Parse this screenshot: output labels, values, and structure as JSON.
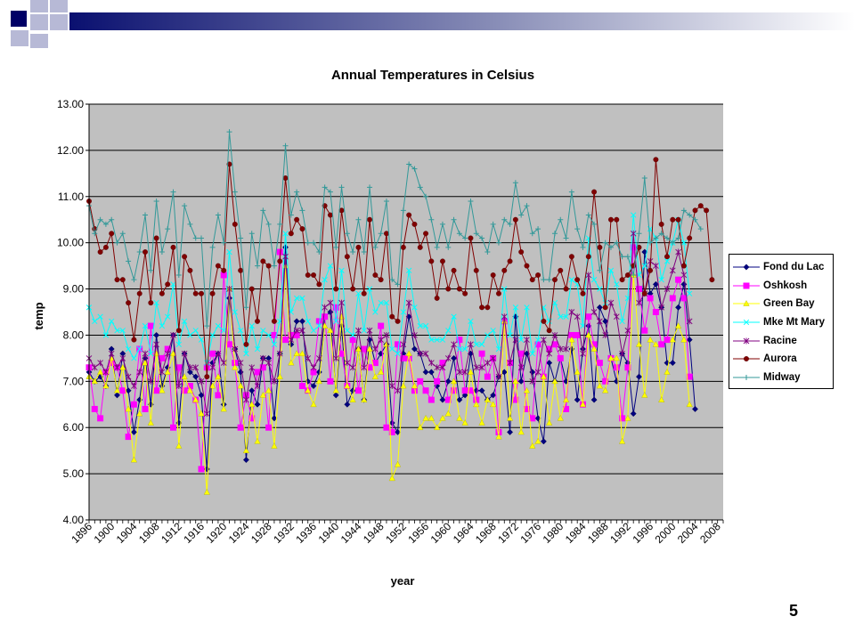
{
  "slide": {
    "number": "5"
  },
  "chart_data": {
    "type": "line",
    "title": "Annual Temperatures in Celsius",
    "xlabel": "year",
    "ylabel": "temp",
    "ylim": [
      4.0,
      13.0
    ],
    "yticks": [
      "4.00",
      "5.00",
      "6.00",
      "7.00",
      "8.00",
      "9.00",
      "10.00",
      "11.00",
      "12.00",
      "13.00"
    ],
    "xlim": [
      1896,
      2009
    ],
    "xticks": [
      "1896",
      "1900",
      "1904",
      "1908",
      "1912",
      "1916",
      "1920",
      "1924",
      "1928",
      "1932",
      "1936",
      "1940",
      "1944",
      "1948",
      "1952",
      "1956",
      "1960",
      "1964",
      "1968",
      "1972",
      "1976",
      "1980",
      "1984",
      "1988",
      "1992",
      "1996",
      "2000",
      "2004",
      "2008"
    ],
    "grid": "horizontal",
    "legend_position": "right",
    "x_start": 1896,
    "series": [
      {
        "name": "Fond du Lac",
        "color": "#000080",
        "marker": "diamond",
        "start": 1896,
        "values": [
          7.2,
          7.0,
          7.1,
          6.9,
          7.7,
          6.7,
          7.6,
          6.8,
          5.9,
          6.6,
          7.5,
          6.5,
          8.0,
          6.9,
          7.3,
          8.0,
          6.1,
          7.6,
          7.2,
          7.1,
          6.7,
          5.1,
          7.4,
          7.6,
          6.5,
          8.8,
          7.7,
          7.2,
          5.3,
          6.8,
          6.5,
          7.5,
          7.5,
          6.2,
          7.6,
          9.9,
          7.8,
          8.3,
          8.3,
          7.0,
          6.9,
          7.2,
          8.4,
          8.5,
          6.7,
          8.2,
          6.5,
          6.8,
          7.7,
          6.6,
          7.9,
          7.4,
          7.6,
          7.8,
          6.1,
          5.9,
          7.6,
          8.4,
          7.7,
          7.6,
          7.2,
          7.2,
          6.9,
          6.6,
          7.0,
          7.5,
          6.6,
          6.7,
          7.6,
          6.8,
          6.8,
          6.6,
          6.7,
          7.1,
          7.2,
          5.9,
          8.4,
          7.0,
          7.6,
          7.2,
          6.2,
          5.7,
          7.4,
          7.0,
          7.5,
          7.0,
          7.7,
          6.6,
          7.7,
          8.2,
          6.6,
          8.6,
          8.3,
          7.5,
          7.0,
          7.6,
          7.4,
          6.3,
          7.1,
          9.8,
          8.9,
          9.1,
          8.6,
          7.4,
          7.4,
          8.6,
          9.1,
          7.9,
          6.4
        ]
      },
      {
        "name": "Oshkosh",
        "color": "#ff00ff",
        "marker": "square",
        "start": 1896,
        "values": [
          7.3,
          6.4,
          6.2,
          7.2,
          7.4,
          7.3,
          6.8,
          5.8,
          6.5,
          7.7,
          6.4,
          8.2,
          6.8,
          7.5,
          7.7,
          6.0,
          7.3,
          6.8,
          6.9,
          6.6,
          5.1,
          7.3,
          7.6,
          6.7,
          9.3,
          7.8,
          7.4,
          6.0,
          6.7,
          6.2,
          7.2,
          7.3,
          6.0,
          8.0,
          9.8,
          7.9,
          8.0,
          8.0,
          6.9,
          6.8,
          7.2,
          8.3,
          8.4,
          7.0,
          8.6,
          7.6,
          6.9,
          7.9,
          6.8,
          7.7,
          7.3,
          7.4,
          8.2,
          6.0,
          5.9,
          7.8,
          7.5,
          7.5,
          6.8,
          7.0,
          6.8,
          6.6,
          7.0,
          7.4,
          6.6,
          6.8,
          7.9,
          6.8,
          6.8,
          6.6,
          7.6,
          7.1,
          7.5,
          5.9,
          8.3,
          7.4,
          6.6,
          7.6,
          6.4,
          6.2,
          7.8,
          7.1,
          7.7,
          7.8,
          7.5,
          6.4,
          8.0,
          8.0,
          6.5,
          8.4,
          7.8,
          7.4,
          7.0,
          7.5,
          7.3,
          6.2,
          7.3,
          9.9,
          9.0,
          8.1,
          8.8,
          8.5,
          7.8,
          7.9,
          8.8,
          9.2,
          8.8,
          7.1
        ]
      },
      {
        "name": "Green Bay",
        "color": "#ffff00",
        "marker": "triangle",
        "start": 1896,
        "values": [
          7.1,
          7.0,
          7.2,
          6.9,
          7.5,
          6.8,
          7.3,
          6.4,
          5.3,
          6.3,
          7.4,
          6.1,
          7.6,
          6.8,
          7.2,
          7.6,
          5.6,
          7.1,
          6.8,
          6.6,
          6.3,
          4.6,
          6.9,
          7.1,
          6.4,
          9.0,
          7.3,
          6.9,
          5.5,
          6.5,
          5.7,
          6.7,
          6.8,
          5.6,
          7.1,
          9.5,
          7.4,
          7.6,
          7.6,
          6.8,
          6.5,
          7.0,
          8.2,
          8.1,
          6.8,
          8.4,
          6.9,
          6.6,
          7.7,
          6.6,
          7.7,
          7.1,
          7.2,
          7.8,
          4.9,
          5.2,
          6.9,
          7.6,
          6.9,
          6.0,
          6.2,
          6.2,
          6.0,
          6.2,
          6.3,
          7.0,
          6.2,
          6.1,
          7.2,
          6.5,
          6.1,
          6.6,
          6.5,
          5.8,
          8.3,
          6.2,
          7.0,
          5.9,
          6.8,
          5.6,
          5.7,
          7.1,
          6.1,
          7.0,
          6.2,
          6.6,
          7.9,
          7.2,
          6.5,
          8.0,
          7.7,
          6.9,
          6.8,
          7.5,
          7.5,
          5.7,
          6.2,
          9.3,
          7.8,
          6.7,
          7.9,
          7.8,
          6.6,
          7.2,
          7.9,
          8.2,
          7.9,
          6.5
        ]
      },
      {
        "name": "Mke Mt Mary",
        "color": "#00ffff",
        "marker": "x",
        "start": 1896,
        "values": [
          8.6,
          8.3,
          8.4,
          8.0,
          8.3,
          8.1,
          8.1,
          7.7,
          7.5,
          7.7,
          8.2,
          7.6,
          8.7,
          8.2,
          8.4,
          9.1,
          7.8,
          8.3,
          8.0,
          8.1,
          7.9,
          7.4,
          8.0,
          8.2,
          8.1,
          9.8,
          8.5,
          8.1,
          7.6,
          8.2,
          7.7,
          8.1,
          8.0,
          7.8,
          8.3,
          10.2,
          8.5,
          8.8,
          8.8,
          8.3,
          8.1,
          8.2,
          9.2,
          9.5,
          8.3,
          9.4,
          8.1,
          8.0,
          8.9,
          8.1,
          9.0,
          8.5,
          8.7,
          8.7,
          7.7,
          7.6,
          8.5,
          9.4,
          8.6,
          8.2,
          8.2,
          7.9,
          7.9,
          7.9,
          8.1,
          8.4,
          7.7,
          7.7,
          8.3,
          7.8,
          7.8,
          8.0,
          8.1,
          7.7,
          9.0,
          8.0,
          8.6,
          7.9,
          8.6,
          7.6,
          7.9,
          8.6,
          8.3,
          8.7,
          8.4,
          8.4,
          9.2,
          9.1,
          8.2,
          10.1,
          9.2,
          9.0,
          8.7,
          9.4,
          9.1,
          8.3,
          8.8,
          10.6,
          9.3,
          9.5,
          10.3,
          10.1,
          9.2,
          9.6,
          10.0,
          10.5,
          10.0,
          8.9
        ]
      },
      {
        "name": "Racine",
        "color": "#800080",
        "marker": "star",
        "start": 1896,
        "values": [
          7.5,
          7.3,
          7.4,
          7.2,
          7.6,
          7.3,
          7.5,
          7.1,
          6.9,
          7.2,
          7.6,
          7.0,
          7.8,
          7.2,
          7.6,
          8.0,
          6.9,
          7.6,
          7.3,
          7.3,
          7.0,
          6.3,
          7.3,
          7.6,
          7.4,
          9.0,
          7.7,
          7.4,
          6.6,
          7.3,
          6.9,
          7.5,
          7.4,
          7.0,
          7.6,
          9.7,
          7.9,
          8.1,
          8.1,
          7.5,
          7.3,
          7.5,
          8.6,
          8.7,
          7.5,
          8.7,
          7.4,
          7.3,
          8.1,
          7.3,
          8.1,
          7.7,
          7.9,
          8.0,
          6.9,
          6.8,
          7.8,
          8.7,
          8.0,
          7.6,
          7.6,
          7.4,
          7.3,
          7.3,
          7.5,
          7.8,
          7.2,
          7.2,
          7.8,
          7.3,
          7.3,
          7.4,
          7.5,
          7.1,
          8.4,
          7.4,
          7.9,
          7.3,
          7.9,
          7.0,
          7.2,
          7.9,
          7.6,
          8.0,
          7.7,
          7.7,
          8.5,
          8.4,
          7.6,
          9.3,
          8.5,
          8.3,
          8.0,
          8.7,
          8.4,
          7.6,
          8.1,
          10.2,
          8.7,
          8.9,
          9.6,
          9.5,
          8.6,
          9.0,
          9.4,
          9.8,
          9.3,
          8.3
        ]
      },
      {
        "name": "Aurora",
        "color": "#800000",
        "marker": "circle",
        "start": 1896,
        "values": [
          10.9,
          10.3,
          9.8,
          9.9,
          10.2,
          9.2,
          9.2,
          8.7,
          7.9,
          8.9,
          9.8,
          8.7,
          10.1,
          8.9,
          9.1,
          9.9,
          8.1,
          9.7,
          9.4,
          8.9,
          8.9,
          7.1,
          8.9,
          9.5,
          9.4,
          11.7,
          10.4,
          9.4,
          7.8,
          9.0,
          8.3,
          9.6,
          9.5,
          8.3,
          9.6,
          11.4,
          10.2,
          10.5,
          10.3,
          9.3,
          9.3,
          9.1,
          10.8,
          10.6,
          9.0,
          10.7,
          9.7,
          9.0,
          9.9,
          8.9,
          10.5,
          9.3,
          9.2,
          10.2,
          8.4,
          8.3,
          9.9,
          10.6,
          10.4,
          9.9,
          10.2,
          9.6,
          8.8,
          9.6,
          9.0,
          9.4,
          9.0,
          8.9,
          10.1,
          9.4,
          8.6,
          8.6,
          9.3,
          8.9,
          9.4,
          9.6,
          10.5,
          9.8,
          9.5,
          9.2,
          9.3,
          8.3,
          8.1,
          9.2,
          9.4,
          9.0,
          9.7,
          9.2,
          8.9,
          9.7,
          11.1,
          9.9,
          8.6,
          10.5,
          10.5,
          9.2,
          9.3,
          9.5,
          9.9,
          8.9,
          9.4,
          11.8,
          10.4,
          9.7,
          10.5,
          10.5,
          9.5,
          10.1,
          10.7,
          10.8,
          10.7,
          9.2
        ]
      },
      {
        "name": "Midway",
        "color": "#339999",
        "marker": "plus",
        "start": 1896,
        "values": [
          10.8,
          10.2,
          10.5,
          10.4,
          10.5,
          10.0,
          10.2,
          9.6,
          9.2,
          9.8,
          10.6,
          9.4,
          10.9,
          9.8,
          10.3,
          11.1,
          9.3,
          10.8,
          10.4,
          10.1,
          10.1,
          8.2,
          9.9,
          10.6,
          10.0,
          12.4,
          11.1,
          10.1,
          8.6,
          10.2,
          9.5,
          10.7,
          10.4,
          9.5,
          10.4,
          12.1,
          10.6,
          11.1,
          10.7,
          10.0,
          10.0,
          9.8,
          11.2,
          11.1,
          9.9,
          11.2,
          10.2,
          9.8,
          10.5,
          9.8,
          11.2,
          9.9,
          10.2,
          10.9,
          9.2,
          9.1,
          10.7,
          11.7,
          11.6,
          11.2,
          11.0,
          10.5,
          9.9,
          10.4,
          9.9,
          10.5,
          10.2,
          10.1,
          10.9,
          10.2,
          10.1,
          9.8,
          10.4,
          10.0,
          10.5,
          10.4,
          11.3,
          10.6,
          10.8,
          10.2,
          10.3,
          9.2,
          9.2,
          10.2,
          10.5,
          10.1,
          11.1,
          10.3,
          9.9,
          10.6,
          10.4,
          9.4,
          10.0,
          9.9,
          10.0,
          9.7,
          9.7,
          9.3,
          10.2,
          11.4,
          10.0,
          10.1,
          10.2,
          10.1,
          10.0,
          10.1,
          10.7,
          10.6,
          10.5,
          10.3
        ]
      }
    ]
  }
}
